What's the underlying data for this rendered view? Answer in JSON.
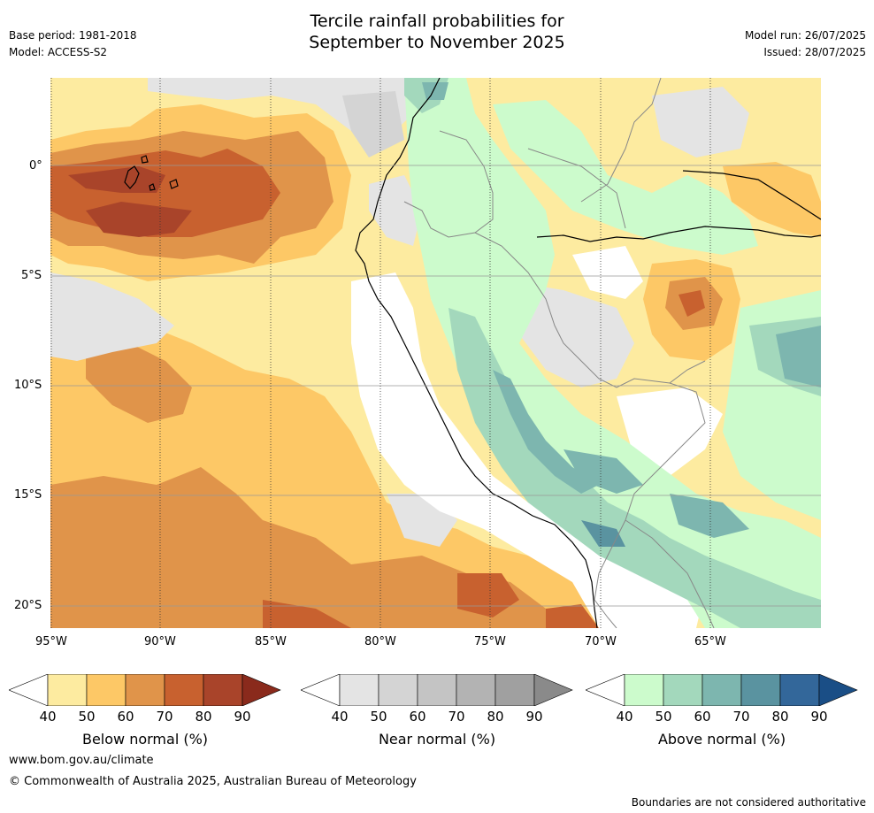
{
  "header": {
    "title_line1": "Tercile rainfall probabilities for",
    "title_line2": "September to November 2025",
    "base_period": "Base period: 1981-2018",
    "model": "Model: ACCESS-S2",
    "model_run": "Model run: 26/07/2025",
    "issued": "Issued: 28/07/2025"
  },
  "axes": {
    "lon_ticks": [
      "95°W",
      "90°W",
      "85°W",
      "80°W",
      "75°W",
      "70°W",
      "65°W"
    ],
    "lat_ticks": [
      "0°",
      "5°S",
      "10°S",
      "15°S",
      "20°S"
    ]
  },
  "colorbars": [
    {
      "label": "Below normal (%)",
      "ticks": [
        "40",
        "50",
        "60",
        "70",
        "80",
        "90"
      ],
      "colors": [
        "#ffffff",
        "#fdeba0",
        "#fdc866",
        "#e0944a",
        "#c8612f",
        "#a9442a",
        "#8a2a1c"
      ]
    },
    {
      "label": "Near normal (%)",
      "ticks": [
        "40",
        "50",
        "60",
        "70",
        "80",
        "90"
      ],
      "colors": [
        "#ffffff",
        "#e4e4e4",
        "#d4d4d4",
        "#c4c4c4",
        "#b3b3b3",
        "#a0a0a0",
        "#8a8a8a"
      ]
    },
    {
      "label": "Above normal (%)",
      "ticks": [
        "40",
        "50",
        "60",
        "70",
        "80",
        "90"
      ],
      "colors": [
        "#ffffff",
        "#ccfbcc",
        "#a3d8bc",
        "#7db6af",
        "#5a93a0",
        "#33679a",
        "#1a4e86"
      ]
    }
  ],
  "footer": {
    "website": "www.bom.gov.au/climate",
    "copyright": "© Commonwealth of Australia 2025, Australian Bureau of Meteorology",
    "disclaimer": "Boundaries are not considered authoritative"
  }
}
